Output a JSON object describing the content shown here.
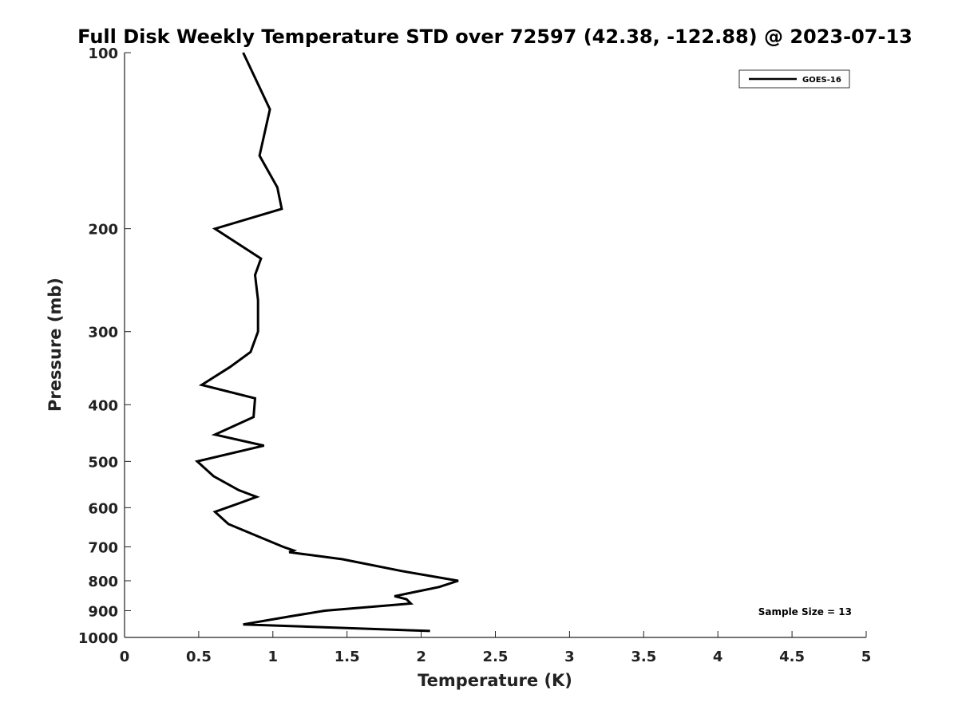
{
  "chart_data": {
    "type": "line",
    "title": "Full Disk Weekly Temperature STD over 72597 (42.38, -122.88) @ 2023-07-13",
    "xlabel": "Temperature (K)",
    "ylabel": "Pressure (mb)",
    "xlim": [
      0,
      5
    ],
    "ylim": [
      100,
      1000
    ],
    "y_scale": "log",
    "y_reversed": true,
    "x_ticks": [
      0,
      0.5,
      1,
      1.5,
      2,
      2.5,
      3,
      3.5,
      4,
      4.5,
      5
    ],
    "x_tick_labels": [
      "0",
      "0.5",
      "1",
      "1.5",
      "2",
      "2.5",
      "3",
      "3.5",
      "4",
      "4.5",
      "5"
    ],
    "y_ticks": [
      100,
      200,
      300,
      400,
      500,
      600,
      700,
      800,
      900,
      1000
    ],
    "y_tick_labels": [
      "100",
      "200",
      "300",
      "400",
      "500",
      "600",
      "700",
      "800",
      "900",
      "1000"
    ],
    "grid": false,
    "legend_position": "top-right",
    "series": [
      {
        "name": "GOES-16",
        "color": "#000000",
        "points": [
          [
            0.8,
            100
          ],
          [
            0.98,
            125
          ],
          [
            0.91,
            150
          ],
          [
            1.03,
            170
          ],
          [
            1.06,
            185
          ],
          [
            0.61,
            200
          ],
          [
            0.92,
            225
          ],
          [
            0.88,
            240
          ],
          [
            0.9,
            265
          ],
          [
            0.9,
            300
          ],
          [
            0.85,
            325
          ],
          [
            0.71,
            345
          ],
          [
            0.52,
            370
          ],
          [
            0.88,
            390
          ],
          [
            0.87,
            420
          ],
          [
            0.61,
            450
          ],
          [
            0.94,
            470
          ],
          [
            0.49,
            500
          ],
          [
            0.6,
            530
          ],
          [
            0.77,
            560
          ],
          [
            0.89,
            575
          ],
          [
            0.77,
            590
          ],
          [
            0.61,
            610
          ],
          [
            0.7,
            640
          ],
          [
            0.92,
            675
          ],
          [
            1.07,
            700
          ],
          [
            1.14,
            710
          ],
          [
            1.11,
            715
          ],
          [
            1.47,
            735
          ],
          [
            1.87,
            770
          ],
          [
            2.25,
            800
          ],
          [
            2.12,
            820
          ],
          [
            1.82,
            850
          ],
          [
            1.9,
            860
          ],
          [
            1.93,
            875
          ],
          [
            1.35,
            900
          ],
          [
            1.12,
            920
          ],
          [
            0.8,
            950
          ],
          [
            2.06,
            975
          ]
        ]
      }
    ],
    "annotation": "Sample Size = 13"
  }
}
